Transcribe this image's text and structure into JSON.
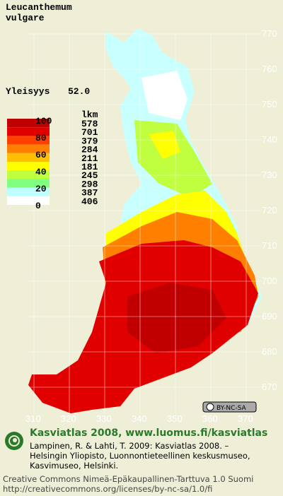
{
  "title": {
    "line1": "Leucanthemum",
    "line2": "vulgare"
  },
  "frequency": {
    "label": "Yleisyys",
    "value": "52.0"
  },
  "legend": {
    "scale": [
      "100",
      "80",
      "60",
      "40",
      "20",
      "0"
    ],
    "count_header": "lkm",
    "counts": [
      "578",
      "701",
      "379",
      "284",
      "211",
      "181",
      "245",
      "298",
      "387",
      "406"
    ]
  },
  "grid": {
    "northing": [
      "770",
      "760",
      "750",
      "740",
      "730",
      "720",
      "710",
      "700",
      "690",
      "680",
      "670"
    ],
    "easting": [
      "310",
      "320",
      "330",
      "340",
      "350",
      "360",
      "370"
    ]
  },
  "license_badge": "BY-NC-SA",
  "footer": {
    "heading": "Kasviatlas 2008, www.luomus.fi/kasviatlas",
    "citation": [
      "Lampinen, R. & Lahti, T. 2009: Kasviatlas 2008. –",
      "Helsingin Yliopisto, Luonnontieteellinen keskusmuseo,",
      "Kasvimuseo, Helsinki."
    ],
    "license": [
      "Creative Commons Nimeä-Epäkaupallinen-Tarttuva 1.0 Suomi",
      "http://creativecommons.org/licenses/by-nc-sa/1.0/fi"
    ]
  }
}
